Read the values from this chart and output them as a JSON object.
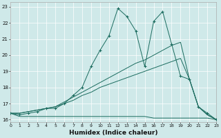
{
  "xlabel": "Humidex (Indice chaleur)",
  "background_color": "#cfe9e9",
  "line_color": "#1a6b5e",
  "grid_color": "#ffffff",
  "xlim": [
    0,
    23
  ],
  "ylim": [
    15.85,
    23.3
  ],
  "xticks": [
    0,
    1,
    2,
    3,
    4,
    5,
    6,
    7,
    8,
    9,
    10,
    11,
    12,
    13,
    14,
    15,
    16,
    17,
    18,
    19,
    20,
    21,
    22,
    23
  ],
  "yticks": [
    16,
    17,
    18,
    19,
    20,
    21,
    22,
    23
  ],
  "line1_x": [
    0,
    1,
    2,
    3,
    4,
    5,
    6,
    7,
    8,
    9,
    10,
    11,
    12,
    13,
    14,
    15,
    16,
    17,
    18,
    19,
    20,
    21,
    22,
    23
  ],
  "line1_y": [
    16.4,
    16.3,
    16.4,
    16.5,
    16.7,
    16.7,
    17.0,
    17.5,
    18.0,
    19.3,
    20.3,
    21.2,
    22.9,
    22.4,
    21.5,
    19.3,
    22.1,
    22.7,
    20.7,
    18.7,
    18.5,
    16.8,
    16.4,
    16.0
  ],
  "line2_x": [
    0,
    1,
    2,
    3,
    4,
    5,
    6,
    7,
    8,
    9,
    10,
    11,
    12,
    13,
    14,
    15,
    16,
    17,
    18,
    19,
    20,
    21,
    22,
    23
  ],
  "line2_y": [
    16.4,
    16.4,
    16.5,
    16.6,
    16.7,
    16.8,
    17.1,
    17.4,
    17.7,
    18.0,
    18.3,
    18.6,
    18.9,
    19.2,
    19.5,
    19.7,
    20.0,
    20.3,
    20.6,
    20.8,
    18.5,
    16.8,
    16.3,
    16.0
  ],
  "line3_x": [
    0,
    1,
    2,
    3,
    4,
    5,
    6,
    7,
    8,
    9,
    10,
    11,
    12,
    13,
    14,
    15,
    16,
    17,
    18,
    19,
    20,
    21,
    22,
    23
  ],
  "line3_y": [
    16.4,
    16.4,
    16.5,
    16.6,
    16.7,
    16.8,
    17.0,
    17.2,
    17.5,
    17.7,
    18.0,
    18.2,
    18.4,
    18.6,
    18.8,
    19.0,
    19.2,
    19.4,
    19.6,
    19.8,
    18.5,
    16.8,
    16.3,
    16.0
  ],
  "line4_x": [
    0,
    1,
    2,
    3,
    4,
    5,
    6,
    7,
    8,
    9,
    10,
    11,
    12,
    13,
    14,
    15,
    16,
    17,
    18,
    19,
    20,
    21,
    22,
    23
  ],
  "line4_y": [
    16.4,
    16.2,
    16.2,
    16.2,
    16.2,
    16.2,
    16.2,
    16.2,
    16.2,
    16.2,
    16.2,
    16.2,
    16.2,
    16.2,
    16.2,
    16.2,
    16.1,
    16.1,
    16.1,
    16.1,
    16.1,
    16.1,
    16.1,
    16.0
  ]
}
